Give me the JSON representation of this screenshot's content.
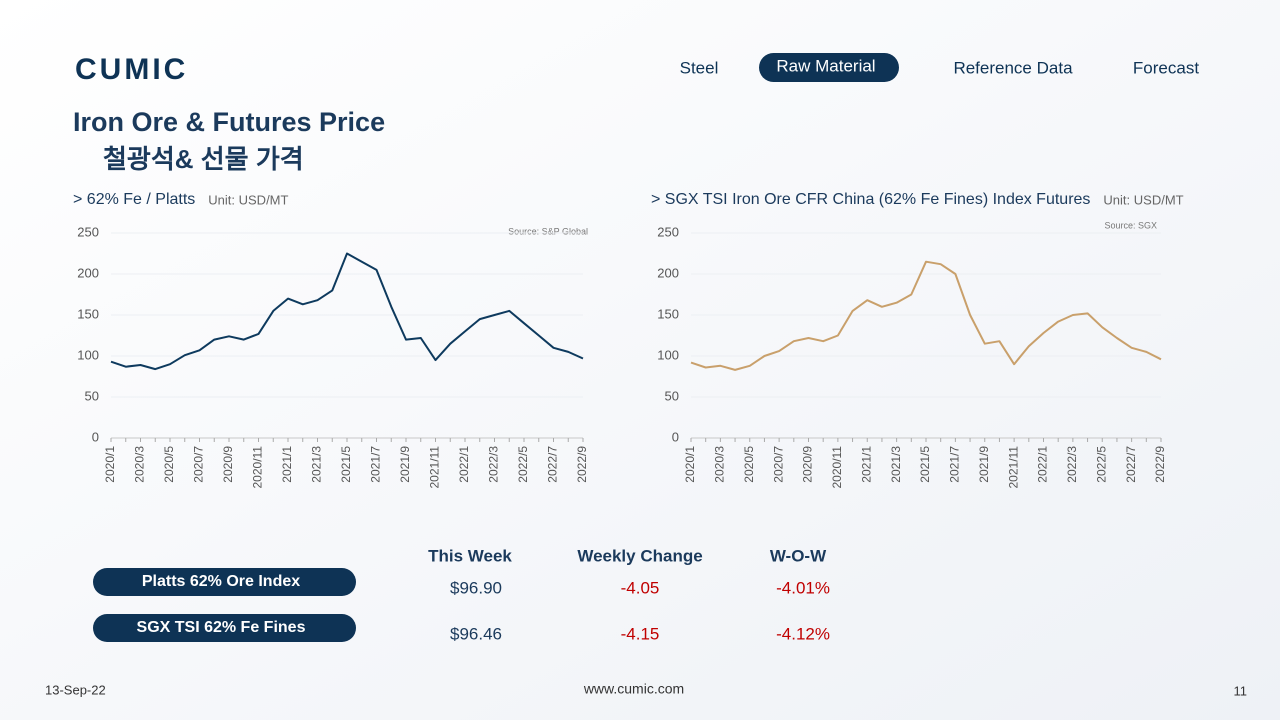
{
  "header": {
    "logo": "CUMIC",
    "nav": [
      "Steel",
      "Raw Material",
      "Reference Data",
      "Forecast"
    ],
    "title": "Iron Ore & Futures Price",
    "subtitle": "철광석& 선물 가격"
  },
  "chart_data": [
    {
      "type": "line",
      "title": "> 62% Fe / Platts",
      "unit": "Unit: USD/MT",
      "source": "Source: S&P Global",
      "categories": [
        "2020/1",
        null,
        "2020/3",
        null,
        "2020/5",
        null,
        "2020/7",
        null,
        "2020/9",
        null,
        "2020/11",
        null,
        "2021/1",
        null,
        "2021/3",
        null,
        "2021/5",
        null,
        "2021/7",
        null,
        "2021/9",
        null,
        "2021/11",
        null,
        "2022/1",
        null,
        "2022/3",
        null,
        "2022/5",
        null,
        "2022/7",
        null,
        "2022/9"
      ],
      "series": [
        {
          "color": "#0e3a5e",
          "values": [
            93,
            87,
            89,
            84,
            90,
            101,
            107,
            120,
            124,
            120,
            127,
            155,
            170,
            163,
            168,
            180,
            225,
            215,
            205,
            160,
            120,
            122,
            95,
            115,
            130,
            145,
            150,
            155,
            140,
            125,
            110,
            105,
            97
          ]
        }
      ],
      "ylim": [
        0,
        250
      ],
      "yticks": [
        0,
        50,
        100,
        150,
        200,
        250
      ]
    },
    {
      "type": "line",
      "title": "> SGX TSI Iron Ore CFR China (62% Fe Fines) Index Futures",
      "unit": "Unit: USD/MT",
      "source": "Source: SGX",
      "categories": [
        "2020/1",
        null,
        "2020/3",
        null,
        "2020/5",
        null,
        "2020/7",
        null,
        "2020/9",
        null,
        "2020/11",
        null,
        "2021/1",
        null,
        "2021/3",
        null,
        "2021/5",
        null,
        "2021/7",
        null,
        "2021/9",
        null,
        "2021/11",
        null,
        "2022/1",
        null,
        "2022/3",
        null,
        "2022/5",
        null,
        "2022/7",
        null,
        "2022/9"
      ],
      "series": [
        {
          "color": "#c9a06b",
          "values": [
            92,
            86,
            88,
            83,
            88,
            100,
            106,
            118,
            122,
            118,
            125,
            155,
            168,
            160,
            165,
            175,
            215,
            212,
            200,
            150,
            115,
            118,
            90,
            112,
            128,
            142,
            150,
            152,
            135,
            122,
            110,
            105,
            96
          ]
        }
      ],
      "ylim": [
        0,
        250
      ],
      "yticks": [
        0,
        50,
        100,
        150,
        200,
        250
      ]
    }
  ],
  "table": {
    "columns": [
      "This Week",
      "Weekly Change",
      "W-O-W"
    ],
    "rows": [
      [
        "Platts 62% Ore Index",
        "$96.90",
        "-4.05",
        "-4.01%"
      ],
      [
        "SGX TSI 62% Fe Fines",
        "$96.46",
        "-4.15",
        "-4.12%"
      ]
    ]
  },
  "footer": {
    "date": "13-Sep-22",
    "url": "www.cumic.com",
    "page": "11"
  }
}
